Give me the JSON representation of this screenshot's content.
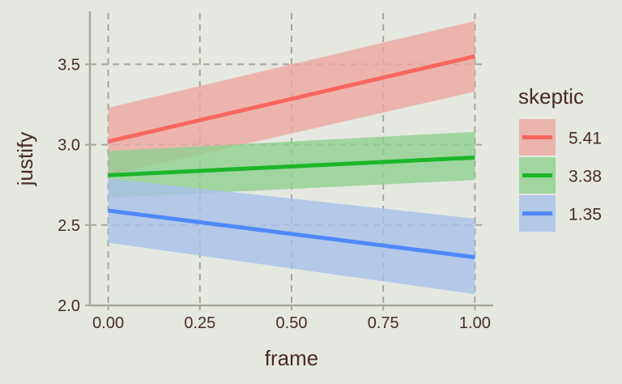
{
  "chart_data": {
    "type": "line",
    "title": "",
    "xlabel": "frame",
    "ylabel": "justify",
    "xlim": [
      -0.05,
      1.05
    ],
    "ylim": [
      2.0,
      3.85
    ],
    "x_ticks": [
      0.0,
      0.25,
      0.5,
      0.75,
      1.0
    ],
    "x_tick_labels": [
      "0.00",
      "0.25",
      "0.50",
      "0.75",
      "1.00"
    ],
    "y_ticks": [
      2.0,
      2.5,
      3.0,
      3.5
    ],
    "y_tick_labels": [
      "2.0",
      "2.5",
      "3.0",
      "3.5"
    ],
    "grid": "dashed",
    "legend": {
      "title": "skeptic",
      "placement": "right"
    },
    "series": [
      {
        "name": "5.41",
        "color": "#f8665f",
        "band_color": "#eca7a0",
        "x": [
          0.0,
          1.0
        ],
        "y": [
          3.02,
          3.55
        ],
        "lower": [
          2.81,
          3.33
        ],
        "upper": [
          3.23,
          3.77
        ]
      },
      {
        "name": "3.38",
        "color": "#1cb52b",
        "band_color": "#8ecf8e",
        "x": [
          0.0,
          1.0
        ],
        "y": [
          2.81,
          2.92
        ],
        "lower": [
          2.67,
          2.78
        ],
        "upper": [
          2.96,
          3.08
        ]
      },
      {
        "name": "1.35",
        "color": "#5087fa",
        "band_color": "#a7c0ea",
        "x": [
          0.0,
          1.0
        ],
        "y": [
          2.59,
          2.3
        ],
        "lower": [
          2.39,
          2.07
        ],
        "upper": [
          2.79,
          2.54
        ]
      }
    ]
  }
}
